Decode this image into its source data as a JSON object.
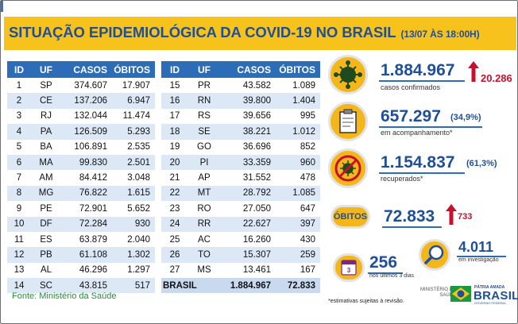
{
  "header": {
    "title": "SITUAÇÃO EPIDEMIOLÓGICA DA COVID-19 NO BRASIL",
    "subtitle": "(13/07 ÀS 18:00H)"
  },
  "table": {
    "columns": [
      "ID",
      "UF",
      "CASOS",
      "ÓBITOS"
    ],
    "left_rows": [
      [
        "1",
        "SP",
        "374.607",
        "17.907"
      ],
      [
        "2",
        "CE",
        "137.206",
        "6.947"
      ],
      [
        "3",
        "RJ",
        "132.044",
        "11.474"
      ],
      [
        "4",
        "PA",
        "126.509",
        "5.293"
      ],
      [
        "5",
        "BA",
        "106.891",
        "2.535"
      ],
      [
        "6",
        "MA",
        "99.830",
        "2.501"
      ],
      [
        "7",
        "AM",
        "84.412",
        "3.048"
      ],
      [
        "8",
        "MG",
        "76.822",
        "1.615"
      ],
      [
        "9",
        "PE",
        "72.901",
        "5.652"
      ],
      [
        "10",
        "DF",
        "72.284",
        "930"
      ],
      [
        "11",
        "ES",
        "63.879",
        "2.040"
      ],
      [
        "12",
        "PB",
        "61.108",
        "1.302"
      ],
      [
        "13",
        "AL",
        "46.296",
        "1.297"
      ],
      [
        "14",
        "SC",
        "43.815",
        "517"
      ]
    ],
    "right_rows": [
      [
        "15",
        "PR",
        "43.582",
        "1.089"
      ],
      [
        "16",
        "RN",
        "39.800",
        "1.404"
      ],
      [
        "17",
        "RS",
        "39.656",
        "995"
      ],
      [
        "18",
        "SE",
        "38.221",
        "1.012"
      ],
      [
        "19",
        "GO",
        "36.696",
        "852"
      ],
      [
        "20",
        "PI",
        "33.359",
        "960"
      ],
      [
        "21",
        "AP",
        "31.552",
        "478"
      ],
      [
        "22",
        "MT",
        "28.792",
        "1.085"
      ],
      [
        "23",
        "RO",
        "27.050",
        "647"
      ],
      [
        "24",
        "RR",
        "22.627",
        "397"
      ],
      [
        "25",
        "AC",
        "16.260",
        "430"
      ],
      [
        "26",
        "TO",
        "15.307",
        "259"
      ],
      [
        "27",
        "MS",
        "13.461",
        "167"
      ]
    ],
    "total": {
      "label": "BRASIL",
      "cases": "1.884.967",
      "deaths": "72.833"
    }
  },
  "stats": {
    "confirmed": {
      "value": "1.884.967",
      "label": "casos confirmados",
      "increase": "20.286",
      "icon": "virus-icon"
    },
    "monitoring": {
      "value": "657.297",
      "pct": "(34,9%)",
      "label": "em acompanhamento*",
      "icon": "clipboard-icon"
    },
    "recovered": {
      "value": "1.154.837",
      "pct": "(61,3%)",
      "label": "recuperados*",
      "icon": "no-virus-icon"
    },
    "deaths": {
      "pill": "ÓBITOS",
      "value": "72.833",
      "increase": "733"
    },
    "last3days": {
      "value": "256",
      "label": "nos últimos 3 dias",
      "badge": "3",
      "icon": "calendar-icon"
    },
    "investigation": {
      "value": "4.011",
      "label": "em investigação",
      "icon": "magnifier-icon"
    }
  },
  "footer": {
    "source": "Fonte: Ministério da Saúde",
    "note": "*estimativas sujeitas à revisão.",
    "ministry_line1": "MINISTÉRIO DA",
    "ministry_line2": "SAÚDE",
    "brand_top": "PÁTRIA AMADA",
    "brand_main": "BRASIL",
    "brand_bottom": "GOVERNO FEDERAL"
  },
  "colors": {
    "header_bg": "#f6c21b",
    "title_blue": "#1f4f98",
    "table_head": "#2d6db7",
    "row_alt": "#dce8f6",
    "increase_red": "#c8102e"
  }
}
